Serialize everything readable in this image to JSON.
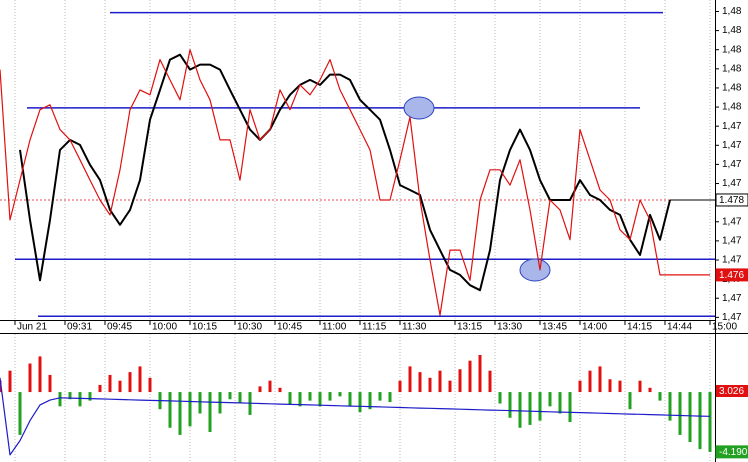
{
  "chart_data": [
    {
      "type": "line",
      "x": [
        0,
        1,
        2,
        3,
        4,
        5,
        6,
        7,
        8,
        9,
        10,
        11,
        12,
        13,
        14,
        15,
        16,
        17,
        18,
        19,
        20,
        21,
        22,
        23,
        24,
        25,
        26,
        27,
        28,
        29,
        30,
        31,
        32,
        33,
        34,
        35,
        36,
        37,
        38,
        39,
        40,
        41,
        42,
        43,
        44,
        45,
        46,
        47,
        48,
        49,
        50,
        51,
        52,
        53,
        54,
        55,
        56,
        57,
        58,
        59,
        60,
        61,
        62,
        63,
        64,
        65,
        66,
        67,
        68,
        69,
        70,
        71
      ],
      "xlim": [
        0,
        71.5
      ],
      "xticks": [
        {
          "value": 1.5,
          "label": "Jun 21"
        },
        {
          "value": 6.5,
          "label": "09:31"
        },
        {
          "value": 10.5,
          "label": "09:45"
        },
        {
          "value": 15,
          "label": "10:00"
        },
        {
          "value": 19,
          "label": "10:15"
        },
        {
          "value": 23.5,
          "label": "10:30"
        },
        {
          "value": 27.5,
          "label": "10:45"
        },
        {
          "value": 32,
          "label": "11:00"
        },
        {
          "value": 36,
          "label": "11:15"
        },
        {
          "value": 40,
          "label": "11:30"
        },
        {
          "value": 45.5,
          "label": "13:15"
        },
        {
          "value": 49.5,
          "label": "13:30"
        },
        {
          "value": 54,
          "label": "13:45"
        },
        {
          "value": 58,
          "label": "14:00"
        },
        {
          "value": 62.5,
          "label": "14:15"
        },
        {
          "value": 66.5,
          "label": "14:44"
        },
        {
          "value": 71,
          "label": "15:00"
        }
      ],
      "ylim": [
        1.4743,
        1.4828
      ],
      "yticks": [
        {
          "value": 1.4825,
          "label": "1,48"
        },
        {
          "value": 1.482,
          "label": "1,48"
        },
        {
          "value": 1.4815,
          "label": "1,48"
        },
        {
          "value": 1.481,
          "label": "1,48"
        },
        {
          "value": 1.4805,
          "label": "1,48"
        },
        {
          "value": 1.48,
          "label": "1,48"
        },
        {
          "value": 1.4795,
          "label": "1,47"
        },
        {
          "value": 1.479,
          "label": "1,47"
        },
        {
          "value": 1.4785,
          "label": "1,47"
        },
        {
          "value": 1.478,
          "label": "1,47"
        },
        {
          "value": 1.4775,
          "label": "1,47"
        },
        {
          "value": 1.477,
          "label": "1,47"
        },
        {
          "value": 1.4765,
          "label": "1,47"
        },
        {
          "value": 1.476,
          "label": "1,47"
        },
        {
          "value": 1.4755,
          "label": "1,47"
        },
        {
          "value": 1.475,
          "label": "1,47"
        },
        {
          "value": 1.4745,
          "label": "1,47"
        }
      ],
      "grid": true,
      "series": [
        {
          "color": "#000000",
          "label_background": "#ffffff",
          "last_line": true,
          "values": [
            null,
            null,
            1.47888,
            1.47705,
            1.47547,
            1.47705,
            1.47888,
            1.47914,
            1.47901,
            1.47849,
            1.47809,
            1.47731,
            1.47692,
            1.47731,
            1.47809,
            1.47967,
            1.48045,
            1.48124,
            1.48137,
            1.48098,
            1.48111,
            1.48111,
            1.48098,
            1.48045,
            1.47993,
            1.47941,
            1.47914,
            1.47941,
            1.47993,
            1.48032,
            1.48058,
            1.48071,
            1.48058,
            1.48085,
            1.48085,
            1.48071,
            1.48019,
            1.47993,
            1.47967,
            1.47888,
            1.47796,
            1.47783,
            1.4777,
            1.47679,
            1.47626,
            1.47574,
            1.47561,
            1.47534,
            1.47521,
            1.47626,
            1.47809,
            1.47888,
            1.47941,
            1.47888,
            1.47809,
            1.47757,
            1.47757,
            1.47757,
            1.47809,
            1.4777,
            1.47757,
            1.47731,
            1.47718,
            1.47653,
            1.47613,
            1.47718,
            1.47653,
            1.47757,
            null,
            null,
            null,
            null
          ],
          "value_labels": [
            null,
            null,
            null,
            null,
            null,
            null,
            null,
            null,
            null,
            null,
            null,
            null,
            null,
            null,
            null,
            null,
            null,
            null,
            null,
            null,
            null,
            null,
            null,
            null,
            null,
            null,
            null,
            null,
            null,
            null,
            null,
            null,
            null,
            null,
            null,
            null,
            null,
            null,
            null,
            null,
            null,
            null,
            null,
            null,
            null,
            null,
            null,
            null,
            null,
            null,
            null,
            null,
            null,
            null,
            null,
            null,
            null,
            null,
            null,
            null,
            null,
            null,
            null,
            null,
            null,
            null,
            null,
            "1.478",
            null,
            null,
            null,
            null
          ]
        },
        {
          "color": "#e01010",
          "label_background": "#e01010",
          "values": [
            1.48098,
            1.47705,
            1.47809,
            1.47914,
            1.47993,
            1.48006,
            1.47941,
            1.47914,
            1.47862,
            1.47809,
            1.47757,
            1.47718,
            1.47836,
            1.47993,
            1.48045,
            1.48032,
            1.48124,
            1.48071,
            1.48019,
            1.4815,
            1.48071,
            1.48019,
            1.47914,
            1.47914,
            1.47809,
            1.47993,
            1.47914,
            1.47941,
            1.48045,
            1.47993,
            1.48058,
            1.48032,
            1.48071,
            1.48124,
            1.48045,
            1.47993,
            1.47941,
            1.47888,
            1.47757,
            1.47757,
            1.47862,
            1.47974,
            1.47757,
            1.476,
            1.47456,
            1.47626,
            1.47626,
            1.47547,
            1.47757,
            1.47836,
            1.47836,
            1.47796,
            1.47862,
            1.47731,
            1.47574,
            1.47757,
            1.47731,
            1.47653,
            1.47941,
            1.47862,
            1.47783,
            1.47757,
            1.47679,
            1.47653,
            1.47757,
            1.47705,
            1.47561,
            1.47561,
            1.47561,
            1.47561,
            1.47561,
            1.47561
          ],
          "value_labels": [
            null,
            null,
            null,
            null,
            null,
            null,
            null,
            null,
            null,
            null,
            null,
            null,
            null,
            null,
            null,
            null,
            null,
            null,
            null,
            null,
            null,
            null,
            null,
            null,
            null,
            null,
            null,
            null,
            null,
            null,
            null,
            null,
            null,
            null,
            null,
            null,
            null,
            null,
            null,
            null,
            null,
            null,
            null,
            null,
            null,
            null,
            null,
            null,
            null,
            null,
            null,
            null,
            null,
            null,
            null,
            null,
            null,
            null,
            null,
            null,
            null,
            null,
            null,
            null,
            null,
            null,
            null,
            null,
            null,
            null,
            null,
            "1.476"
          ]
        }
      ],
      "levels": [
        {
          "value": 1.48247,
          "x": [
            11,
            66.3
          ]
        },
        {
          "value": 1.47998,
          "x": [
            2.7,
            64
          ]
        },
        {
          "value": 1.47602,
          "x": [
            1.5,
            71.5
          ]
        },
        {
          "value": 1.47453,
          "x": [
            3.8,
            71.5
          ]
        }
      ],
      "level_color": "#1c1cc8"
    },
    {
      "type": "bar",
      "x": [
        0,
        1,
        2,
        3,
        4,
        5,
        6,
        7,
        8,
        9,
        10,
        11,
        12,
        13,
        14,
        15,
        16,
        17,
        18,
        19,
        20,
        21,
        22,
        23,
        24,
        25,
        26,
        27,
        28,
        29,
        30,
        31,
        32,
        33,
        34,
        35,
        36,
        37,
        38,
        39,
        40,
        41,
        42,
        43,
        44,
        45,
        46,
        47,
        48,
        49,
        50,
        51,
        52,
        53,
        54,
        55,
        56,
        57,
        58,
        59,
        60,
        61,
        62,
        63,
        64,
        65,
        66,
        67,
        68,
        69,
        70,
        71
      ],
      "xlim": [
        0,
        71.5
      ],
      "ylim": [
        -4.9,
        4.0
      ],
      "annotation": "3.026",
      "series": [
        {
          "type": "bar",
          "color": "#e01010",
          "negative_color": "#22a022",
          "label_background": "#22a022",
          "values": [
            0.8,
            1.5,
            -3,
            2,
            2.5,
            1.2,
            -1,
            -0.5,
            -1,
            -0.6,
            0.5,
            1.2,
            0.8,
            1.4,
            1.8,
            1,
            -1.2,
            -2.5,
            -3,
            -2.4,
            -1.5,
            -2.8,
            -1.5,
            -0.5,
            -0.8,
            -1.6,
            0.4,
            0.8,
            0.3,
            -0.9,
            -1,
            -0.6,
            -1,
            -0.6,
            -0.3,
            -1,
            -1.4,
            -1.2,
            -0.6,
            -0.7,
            0.8,
            1.8,
            1.4,
            1,
            1.5,
            0.8,
            1.6,
            2.2,
            2.6,
            1.5,
            -0.8,
            -1.8,
            -2.5,
            -2.3,
            -2,
            -1,
            -1.5,
            -2.1,
            0.8,
            1.5,
            1.8,
            0.9,
            0.8,
            -1.2,
            0.8,
            0.3,
            -0.6,
            -2,
            -3,
            -3.5,
            -4,
            -4.19
          ],
          "value_labels": [
            null,
            null,
            null,
            null,
            null,
            null,
            null,
            null,
            null,
            null,
            null,
            null,
            null,
            null,
            null,
            null,
            null,
            null,
            null,
            null,
            null,
            null,
            null,
            null,
            null,
            null,
            null,
            null,
            null,
            null,
            null,
            null,
            null,
            null,
            null,
            null,
            null,
            null,
            null,
            null,
            null,
            null,
            null,
            null,
            null,
            null,
            null,
            null,
            null,
            null,
            null,
            null,
            null,
            null,
            null,
            null,
            null,
            null,
            null,
            null,
            null,
            null,
            null,
            null,
            null,
            null,
            null,
            null,
            null,
            null,
            null,
            "-4.190"
          ]
        },
        {
          "type": "line",
          "color": "#1c1cc8",
          "values": [
            1.0,
            -4.4,
            -3.4,
            -2.0,
            -0.9,
            -0.56,
            -0.4,
            -0.42,
            -0.44,
            -0.46,
            -0.48,
            -0.5,
            -0.52,
            -0.54,
            -0.56,
            -0.58,
            -0.6,
            -0.62,
            -0.64,
            -0.66,
            -0.68,
            -0.7,
            -0.72,
            -0.74,
            -0.76,
            -0.78,
            -0.8,
            -0.82,
            -0.84,
            -0.86,
            -0.88,
            -0.9,
            -0.92,
            -0.94,
            -0.96,
            -0.98,
            -1.0,
            -1.02,
            -1.04,
            -1.06,
            -1.08,
            -1.1,
            -1.12,
            -1.14,
            -1.16,
            -1.18,
            -1.2,
            -1.22,
            -1.24,
            -1.26,
            -1.28,
            -1.3,
            -1.32,
            -1.34,
            -1.36,
            -1.38,
            -1.4,
            -1.42,
            -1.44,
            -1.46,
            -1.48,
            -1.5,
            -1.52,
            -1.54,
            -1.56,
            -1.58,
            -1.6,
            -1.62,
            -1.64,
            -1.66,
            -1.68,
            -1.7
          ]
        }
      ]
    }
  ]
}
